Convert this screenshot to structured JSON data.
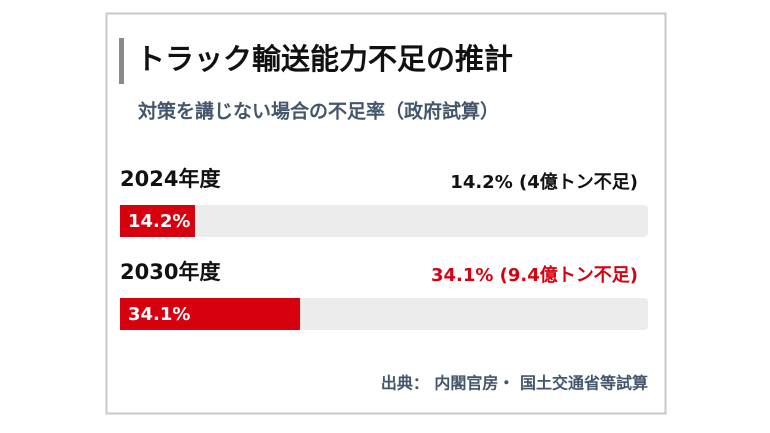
{
  "chart_data": {
    "type": "bar",
    "orientation": "horizontal",
    "title": "トラック輸送能力不足の推計",
    "subtitle": "対策を講じない場合の不足率（政府試算）",
    "categories": [
      "2024年度",
      "2030年度"
    ],
    "values": [
      14.2,
      34.1
    ],
    "value_labels": [
      "14.2%",
      "34.1%"
    ],
    "annotations": [
      "14.2% (4億トン不足)",
      "34.1% (9.4億トン不足)"
    ],
    "annotation_colors": [
      "#111111",
      "#d6000f"
    ],
    "color": "#d6000f",
    "track_color": "#ececec",
    "xlim": [
      0,
      100
    ],
    "source": "出典： 内閣官房・ 国土交通省等試算"
  }
}
